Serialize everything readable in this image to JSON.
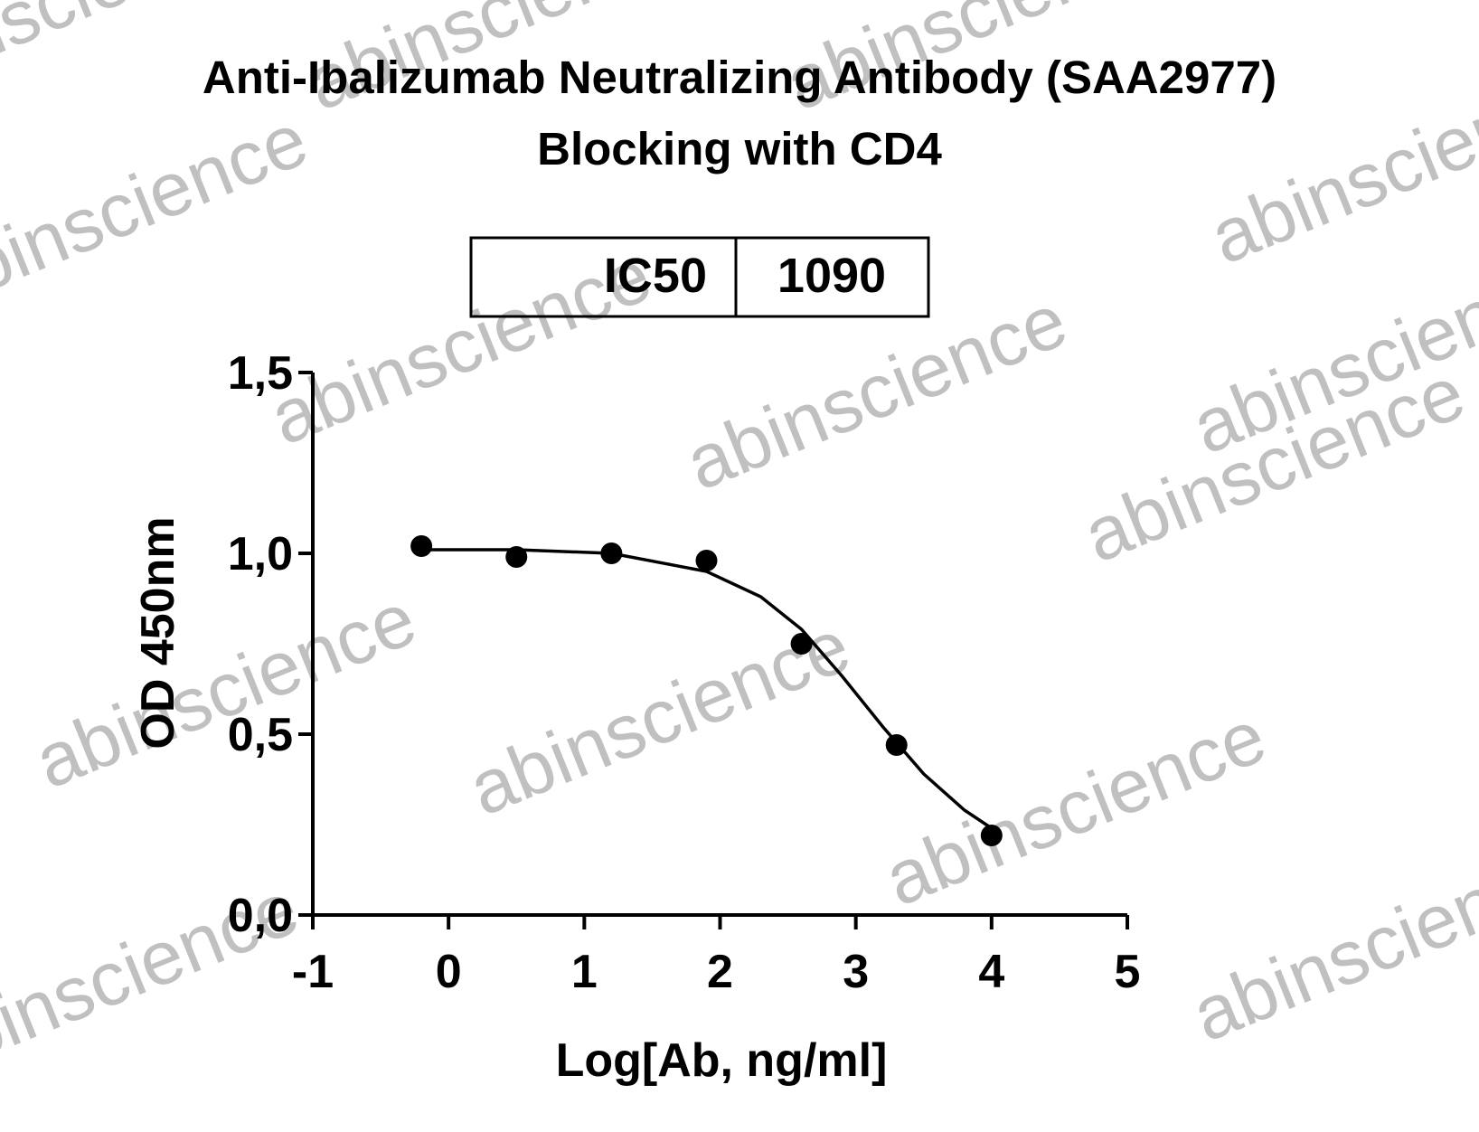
{
  "chart_data": {
    "type": "scatter",
    "title": [
      "Anti-Ibalizumab Neutralizing Antibody (SAA2977)",
      "Blocking with CD4"
    ],
    "ic50": {
      "label": "IC50",
      "value": 1090
    },
    "x_label": "Log[Ab, ng/ml]",
    "y_label": "OD 450nm",
    "watermark": "abinscience",
    "x": [
      -0.2,
      0.5,
      1.2,
      1.9,
      2.6,
      3.3,
      4.0
    ],
    "values": [
      1.02,
      0.99,
      1.0,
      0.98,
      0.75,
      0.47,
      0.22
    ],
    "color": "#000000",
    "fit": {
      "x": [
        -0.2,
        0.5,
        1.2,
        1.9,
        2.3,
        2.6,
        2.9,
        3.2,
        3.5,
        3.8,
        4.0
      ],
      "values": [
        1.01,
        1.01,
        1.0,
        0.95,
        0.88,
        0.79,
        0.66,
        0.52,
        0.39,
        0.29,
        0.24
      ]
    },
    "xlim": [
      -1,
      5
    ],
    "xticks": [
      -1,
      0,
      1,
      2,
      3,
      4,
      5
    ],
    "ylim": [
      0,
      1.5
    ],
    "yticks": [
      {
        "value": 0,
        "label": "0,0"
      },
      {
        "value": 0.5,
        "label": "0,5"
      },
      {
        "value": 1.0,
        "label": "1,0"
      },
      {
        "value": 1.5,
        "label": "1,5"
      }
    ]
  }
}
